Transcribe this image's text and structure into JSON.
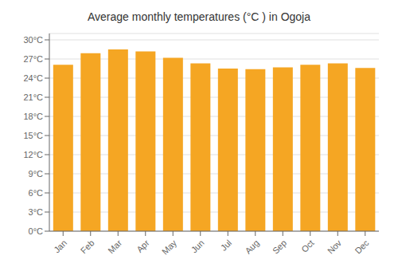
{
  "chart_data": {
    "type": "bar",
    "title": "Average monthly temperatures (°C ) in Ogoja",
    "categories": [
      "Jan",
      "Feb",
      "Mar",
      "Apr",
      "May",
      "Jun",
      "Jul",
      "Aug",
      "Sep",
      "Oct",
      "Nov",
      "Dec"
    ],
    "values": [
      26.1,
      27.9,
      28.5,
      28.2,
      27.2,
      26.3,
      25.5,
      25.4,
      25.7,
      26.1,
      26.3,
      25.6
    ],
    "color": "#F5A623",
    "ylim": [
      0,
      31
    ],
    "yticks": [
      {
        "value": 0,
        "label": "0°C"
      },
      {
        "value": 3,
        "label": "3°C"
      },
      {
        "value": 6,
        "label": "6°C"
      },
      {
        "value": 9,
        "label": "9°C"
      },
      {
        "value": 12,
        "label": "12°C"
      },
      {
        "value": 15,
        "label": "15°C"
      },
      {
        "value": 18,
        "label": "18°C"
      },
      {
        "value": 21,
        "label": "21°C"
      },
      {
        "value": 24,
        "label": "24°C"
      },
      {
        "value": 27,
        "label": "27°C"
      },
      {
        "value": 30,
        "label": "30°C"
      }
    ],
    "grid": true
  }
}
